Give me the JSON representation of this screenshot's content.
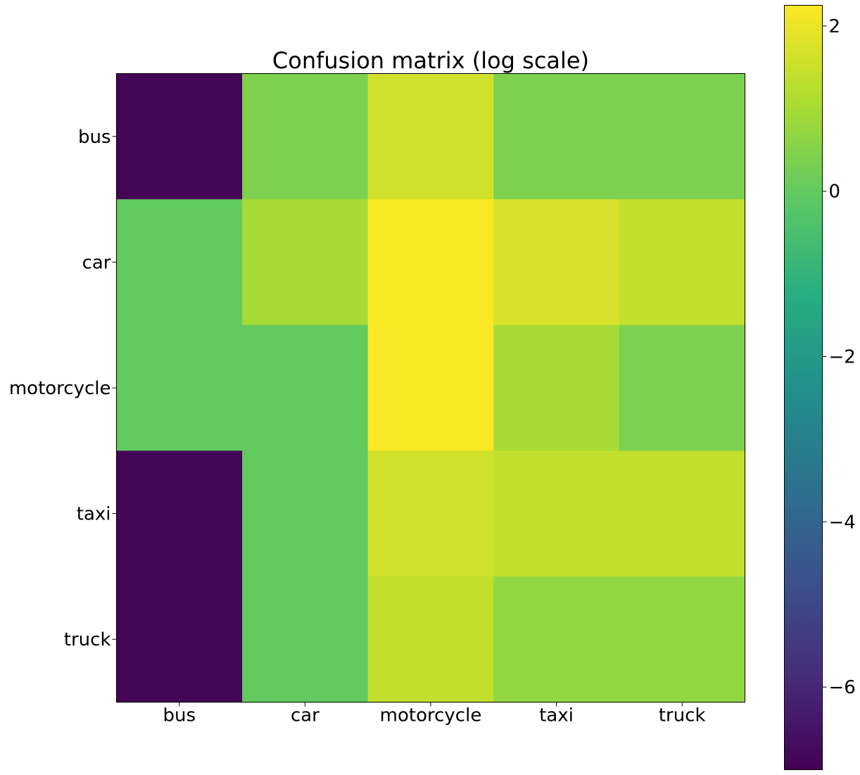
{
  "chart_data": {
    "type": "heatmap",
    "title": "Confusion matrix (log scale)",
    "xlabel": "",
    "ylabel": "",
    "x_categories": [
      "bus",
      "car",
      "motorcycle",
      "taxi",
      "truck"
    ],
    "y_categories": [
      "bus",
      "car",
      "motorcycle",
      "taxi",
      "truck"
    ],
    "values": [
      [
        -6.9,
        0.4,
        1.6,
        0.4,
        0.4
      ],
      [
        0.0,
        1.0,
        2.2,
        1.7,
        1.4
      ],
      [
        0.0,
        0.0,
        2.2,
        1.0,
        0.4
      ],
      [
        -6.9,
        0.0,
        1.6,
        1.4,
        1.4
      ],
      [
        -6.9,
        0.0,
        1.4,
        0.7,
        0.7
      ]
    ],
    "colormap": "viridis",
    "colorbar": {
      "range": [
        -7.0,
        2.25
      ],
      "ticks": [
        2,
        0,
        -2,
        -4,
        -6
      ],
      "tick_labels": [
        "2",
        "0",
        "−2",
        "−4",
        "−6"
      ]
    },
    "grid": false
  }
}
